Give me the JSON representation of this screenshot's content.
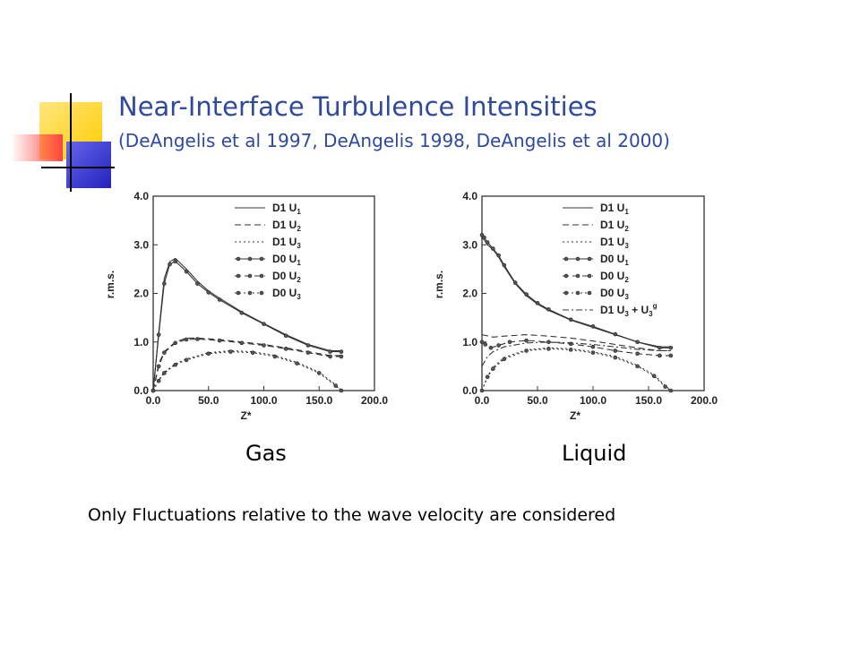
{
  "slide": {
    "title": "Near-Interface Turbulence Intensities",
    "subtitle": "(DeAngelis et al 1997, DeAngelis 1998, DeAngelis et al 2000)",
    "note": "Only Fluctuations relative to the wave velocity are considered",
    "colors": {
      "title": "#2e4a9e",
      "deco_yellow": "#ffcc00",
      "deco_blue": "#3333cc",
      "deco_red": "#ff3333"
    }
  },
  "chart_data": [
    {
      "type": "line",
      "caption": "Gas",
      "xlabel": "Z*",
      "ylabel": "r.m.s.",
      "xlim": [
        0,
        200
      ],
      "ylim": [
        0,
        4
      ],
      "xticks": [
        "0.0",
        "50.0",
        "100.0",
        "150.0",
        "200.0"
      ],
      "yticks": [
        "0.0",
        "1.0",
        "2.0",
        "3.0",
        "4.0"
      ],
      "legend_position": "top-right",
      "series": [
        {
          "name": "D1 U1",
          "label": "D1 U",
          "sub": "1",
          "style": "solid",
          "markers": false,
          "x": [
            0,
            5,
            10,
            15,
            20,
            30,
            40,
            50,
            60,
            80,
            100,
            120,
            140,
            160,
            170
          ],
          "y": [
            0,
            1.2,
            2.3,
            2.65,
            2.72,
            2.5,
            2.25,
            2.05,
            1.9,
            1.62,
            1.38,
            1.15,
            0.95,
            0.82,
            0.82
          ]
        },
        {
          "name": "D1 U2",
          "label": "D1 U",
          "sub": "2",
          "style": "dash",
          "markers": false,
          "x": [
            0,
            5,
            10,
            20,
            30,
            40,
            60,
            80,
            100,
            120,
            140,
            160,
            170
          ],
          "y": [
            0,
            0.55,
            0.8,
            1.0,
            1.08,
            1.08,
            1.05,
            1.0,
            0.95,
            0.88,
            0.8,
            0.72,
            0.72
          ]
        },
        {
          "name": "D1 U3",
          "label": "D1 U",
          "sub": "3",
          "style": "dot",
          "markers": false,
          "x": [
            0,
            5,
            10,
            20,
            30,
            50,
            70,
            90,
            110,
            130,
            150,
            165,
            170
          ],
          "y": [
            0,
            0.22,
            0.38,
            0.55,
            0.65,
            0.78,
            0.82,
            0.8,
            0.72,
            0.58,
            0.38,
            0.12,
            0
          ]
        },
        {
          "name": "D0 U1",
          "label": "D0 U",
          "sub": "1",
          "style": "solid",
          "markers": true,
          "x": [
            0,
            5,
            10,
            15,
            20,
            30,
            40,
            50,
            60,
            80,
            100,
            120,
            140,
            160,
            170
          ],
          "y": [
            0,
            1.15,
            2.2,
            2.6,
            2.66,
            2.45,
            2.2,
            2.02,
            1.87,
            1.6,
            1.37,
            1.13,
            0.93,
            0.8,
            0.8
          ]
        },
        {
          "name": "D0 U2",
          "label": "D0 U",
          "sub": "2",
          "style": "dash",
          "markers": true,
          "x": [
            0,
            5,
            10,
            20,
            30,
            40,
            60,
            80,
            100,
            120,
            140,
            160,
            170
          ],
          "y": [
            0,
            0.5,
            0.78,
            0.98,
            1.05,
            1.06,
            1.03,
            0.98,
            0.93,
            0.86,
            0.78,
            0.7,
            0.7
          ]
        },
        {
          "name": "D0 U3",
          "label": "D0 U",
          "sub": "3",
          "style": "dot",
          "markers": true,
          "x": [
            0,
            5,
            10,
            20,
            30,
            50,
            70,
            90,
            110,
            130,
            150,
            165,
            170
          ],
          "y": [
            0,
            0.2,
            0.36,
            0.53,
            0.63,
            0.76,
            0.8,
            0.78,
            0.7,
            0.56,
            0.36,
            0.1,
            0
          ]
        }
      ]
    },
    {
      "type": "line",
      "caption": "Liquid",
      "xlabel": "Z*",
      "ylabel": "r.m.s.",
      "xlim": [
        0,
        200
      ],
      "ylim": [
        0,
        4
      ],
      "xticks": [
        "0.0",
        "50.0",
        "100.0",
        "150.0",
        "200.0"
      ],
      "yticks": [
        "0.0",
        "1.0",
        "2.0",
        "3.0",
        "4.0"
      ],
      "legend_position": "top-right",
      "series": [
        {
          "name": "D1 U1",
          "label": "D1 U",
          "sub": "1",
          "style": "solid",
          "markers": false,
          "x": [
            0,
            2,
            5,
            10,
            15,
            20,
            30,
            40,
            50,
            60,
            80,
            100,
            120,
            140,
            160,
            170
          ],
          "y": [
            3.15,
            3.1,
            3.0,
            2.9,
            2.75,
            2.55,
            2.2,
            1.95,
            1.78,
            1.65,
            1.45,
            1.3,
            1.15,
            1.0,
            0.9,
            0.9
          ]
        },
        {
          "name": "D1 U2",
          "label": "D1 U",
          "sub": "2",
          "style": "dash",
          "markers": false,
          "x": [
            0,
            10,
            20,
            40,
            60,
            80,
            100,
            120,
            140,
            160,
            170
          ],
          "y": [
            1.15,
            1.1,
            1.12,
            1.15,
            1.12,
            1.08,
            1.02,
            0.95,
            0.88,
            0.82,
            0.82
          ]
        },
        {
          "name": "D1 U3",
          "label": "D1 U",
          "sub": "3",
          "style": "dot",
          "markers": false,
          "x": [
            0,
            5,
            10,
            20,
            40,
            60,
            80,
            100,
            120,
            140,
            155,
            165,
            170
          ],
          "y": [
            0,
            0.3,
            0.48,
            0.68,
            0.84,
            0.88,
            0.86,
            0.8,
            0.7,
            0.52,
            0.32,
            0.1,
            0
          ]
        },
        {
          "name": "D0 U1",
          "label": "D0 U",
          "sub": "1",
          "style": "solid",
          "markers": true,
          "x": [
            0,
            2,
            5,
            10,
            15,
            20,
            30,
            40,
            50,
            60,
            80,
            100,
            120,
            140,
            160,
            170
          ],
          "y": [
            3.2,
            3.15,
            3.05,
            2.92,
            2.78,
            2.58,
            2.22,
            1.98,
            1.8,
            1.67,
            1.46,
            1.32,
            1.16,
            1.0,
            0.88,
            0.88
          ]
        },
        {
          "name": "D0 U2",
          "label": "D0 U",
          "sub": "2",
          "style": "dash",
          "markers": true,
          "x": [
            0,
            3,
            8,
            15,
            25,
            40,
            60,
            80,
            100,
            120,
            140,
            160,
            170
          ],
          "y": [
            1.0,
            0.95,
            0.88,
            0.93,
            1.0,
            1.03,
            1.0,
            0.96,
            0.9,
            0.82,
            0.76,
            0.72,
            0.72
          ]
        },
        {
          "name": "D0 U3",
          "label": "D0 U",
          "sub": "3",
          "style": "dot",
          "markers": true,
          "x": [
            0,
            5,
            10,
            20,
            40,
            60,
            80,
            100,
            120,
            140,
            155,
            165,
            170
          ],
          "y": [
            0,
            0.28,
            0.45,
            0.65,
            0.82,
            0.86,
            0.84,
            0.78,
            0.68,
            0.5,
            0.3,
            0.08,
            0
          ]
        },
        {
          "name": "D1 U3 + U3g",
          "label": "D1 U",
          "sub": "3",
          "label2": " + U",
          "sub2": "3",
          "sup2": "g",
          "style": "dashdot",
          "markers": false,
          "x": [
            0,
            5,
            10,
            20,
            40,
            60,
            80,
            100,
            120,
            140,
            160,
            170
          ],
          "y": [
            0.5,
            0.7,
            0.8,
            0.9,
            0.98,
            1.0,
            0.98,
            0.95,
            0.9,
            0.85,
            0.82,
            0.82
          ]
        }
      ]
    }
  ]
}
